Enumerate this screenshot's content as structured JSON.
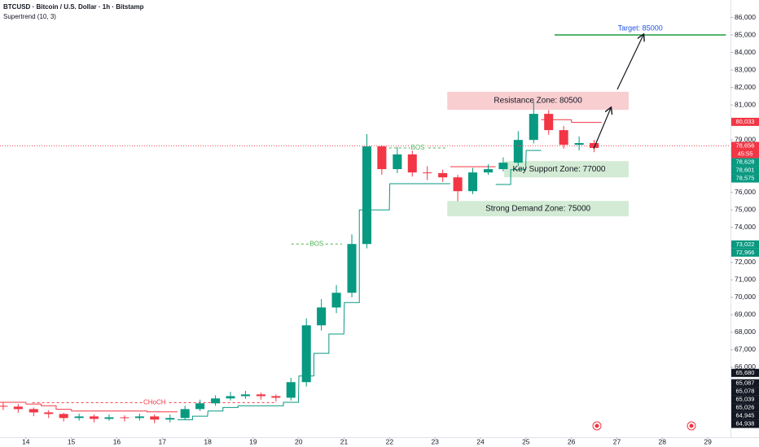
{
  "chart_data": {
    "type": "candlestick",
    "title": "BTCUSD · Bitcoin / U.S. Dollar · 1h · Bitstamp",
    "subtitle": "Supertrend (10, 3)",
    "up_color": "#089981",
    "down_color": "#f23645",
    "x": [
      13.5,
      13.83,
      14.17,
      14.5,
      14.83,
      15.17,
      15.5,
      15.83,
      16.17,
      16.5,
      16.83,
      17.17,
      17.5,
      17.83,
      18.17,
      18.5,
      18.83,
      19.17,
      19.5,
      19.83,
      20.17,
      20.5,
      20.83,
      21.17,
      21.5,
      21.83,
      22.17,
      22.5,
      22.83,
      23.17,
      23.5,
      23.83,
      24.17,
      24.5,
      24.83,
      25.17,
      25.5,
      25.83,
      26.17,
      26.5
    ],
    "open": [
      63800,
      63750,
      63610,
      63420,
      63330,
      63100,
      63190,
      63050,
      63140,
      63100,
      63190,
      63010,
      63100,
      63610,
      63940,
      64220,
      64350,
      64450,
      64350,
      64260,
      65150,
      68400,
      69420,
      70260,
      73050,
      78630,
      77330,
      78170,
      77140,
      77100,
      76860,
      76070,
      77140,
      77330,
      77700,
      79000,
      80490,
      79560,
      78720,
      78820
    ],
    "high": [
      64000,
      63900,
      63700,
      63550,
      63400,
      63350,
      63300,
      63300,
      63250,
      63350,
      63300,
      63300,
      63800,
      64150,
      64400,
      64600,
      64650,
      64550,
      64450,
      65400,
      68800,
      69900,
      70700,
      73600,
      79330,
      78700,
      78600,
      78400,
      77500,
      77300,
      77000,
      77400,
      77600,
      78000,
      79500,
      81190,
      80700,
      79800,
      79200,
      79000
    ],
    "low": [
      63550,
      63400,
      63200,
      63100,
      62900,
      62950,
      62850,
      62950,
      62900,
      62950,
      62800,
      62850,
      63000,
      63500,
      63800,
      64100,
      64200,
      64150,
      64050,
      64100,
      64900,
      68100,
      69100,
      70000,
      72800,
      77000,
      77100,
      76900,
      76700,
      76600,
      75500,
      75900,
      77000,
      77200,
      77500,
      78800,
      79300,
      78500,
      78400,
      78300
    ],
    "close": [
      63750,
      63610,
      63420,
      63330,
      63100,
      63190,
      63050,
      63140,
      63100,
      63190,
      63010,
      63100,
      63610,
      63940,
      64220,
      64350,
      64450,
      64350,
      64260,
      65150,
      68400,
      69420,
      70260,
      73050,
      78630,
      77330,
      78170,
      77140,
      77100,
      76860,
      76070,
      77140,
      77330,
      77700,
      79000,
      80490,
      79560,
      78720,
      78820,
      78540
    ],
    "supertrend": {
      "down_color": "#f23645",
      "up_color": "#089981",
      "down": [
        64000,
        64000,
        63900,
        63800,
        63600,
        63500,
        63500,
        63500,
        63500,
        63500,
        63450,
        63450,
        null,
        null,
        null,
        null,
        null,
        null,
        null,
        null,
        null,
        null,
        null,
        null,
        null,
        null,
        null,
        null,
        null,
        null,
        77470,
        77470,
        77470,
        null,
        null,
        null,
        80160,
        80160,
        80000,
        80000
      ],
      "up": [
        null,
        null,
        null,
        null,
        null,
        null,
        null,
        null,
        null,
        null,
        null,
        null,
        63000,
        63200,
        63500,
        63700,
        63800,
        63800,
        63800,
        64000,
        65500,
        66800,
        67900,
        69700,
        75000,
        75000,
        76500,
        76500,
        76500,
        76500,
        null,
        null,
        null,
        76450,
        77300,
        78400,
        null,
        null,
        null,
        null
      ]
    },
    "xlim": [
      13.43,
      29.5
    ],
    "xticks": [
      14,
      15,
      16,
      17,
      18,
      19,
      20,
      21,
      22,
      23,
      24,
      25,
      26,
      27,
      28,
      29
    ],
    "ylim": [
      62000,
      87000
    ],
    "yticks": [
      {
        "value": 66000,
        "label": "66,000"
      },
      {
        "value": 67000,
        "label": "67,000"
      },
      {
        "value": 68000,
        "label": "68,000"
      },
      {
        "value": 69000,
        "label": "69,000"
      },
      {
        "value": 70000,
        "label": "70,000"
      },
      {
        "value": 71000,
        "label": "71,000"
      },
      {
        "value": 72000,
        "label": "72,000"
      },
      {
        "value": 74000,
        "label": "74,000"
      },
      {
        "value": 75000,
        "label": "75,000"
      },
      {
        "value": 76000,
        "label": "76,000"
      },
      {
        "value": 79000,
        "label": "79,000"
      },
      {
        "value": 81000,
        "label": "81,000"
      },
      {
        "value": 82000,
        "label": "82,000"
      },
      {
        "value": 83000,
        "label": "83,000"
      },
      {
        "value": 84000,
        "label": "84,000"
      },
      {
        "value": 85000,
        "label": "85,000"
      },
      {
        "value": 86000,
        "label": "86,000"
      }
    ],
    "zones": [
      {
        "label": "Resistance Zone: 80500",
        "top": 81750,
        "bottom": 80720,
        "start": 23.27,
        "end": 27.26,
        "color": "#f7c2c6"
      },
      {
        "label": "Key Support Zone: 77000",
        "top": 77790,
        "bottom": 76860,
        "start": 24.52,
        "end": 27.26,
        "color": "#c8e6c9"
      },
      {
        "label": "Strong Demand Zone: 75000",
        "top": 75510,
        "bottom": 74630,
        "start": 23.27,
        "end": 27.26,
        "color": "#c8e6c9"
      }
    ],
    "levels": [
      {
        "label": "BOS",
        "value": 78540,
        "start": 21.99,
        "end": 23.25,
        "color": "#4caf50"
      },
      {
        "label": "BOS",
        "value": 73050,
        "start": 19.84,
        "end": 20.95,
        "color": "#4caf50"
      },
      {
        "label": "CHoCH",
        "value": 63980,
        "start": 14.14,
        "end": 19.52,
        "color": "#f23645"
      }
    ],
    "target": {
      "label": "Target: 85000",
      "value": 85000,
      "start": 25.63,
      "end": 29.4,
      "color": "#1b9e3e",
      "text_color": "#1e53e5"
    },
    "badges": [
      {
        "value": 80033,
        "label": "80,033",
        "color": "#f23645"
      },
      {
        "value": 78656,
        "label": "78,656",
        "color": "#f23645",
        "countdown": "45:55"
      },
      {
        "value": 78628,
        "label": "78,628",
        "color": "#089981"
      },
      {
        "value": 78601,
        "label": "78,601",
        "color": "#089981"
      },
      {
        "value": 78575,
        "label": "78,575",
        "color": "#089981"
      },
      {
        "value": 73022,
        "label": "73,022",
        "color": "#089981"
      },
      {
        "value": 72966,
        "label": "72,966",
        "color": "#089981"
      },
      {
        "value": 65680,
        "label": "65,680",
        "color": "#131722"
      },
      {
        "value": 65087,
        "label": "65,087",
        "color": "#131722"
      },
      {
        "value": 65078,
        "label": "65,078",
        "color": "#131722"
      },
      {
        "value": 65039,
        "label": "65,039",
        "color": "#131722"
      },
      {
        "value": 65026,
        "label": "65,026",
        "color": "#131722"
      },
      {
        "value": 64945,
        "label": "64,945",
        "color": "#131722"
      },
      {
        "value": 64938,
        "label": "64,938",
        "color": "#131722"
      }
    ]
  }
}
